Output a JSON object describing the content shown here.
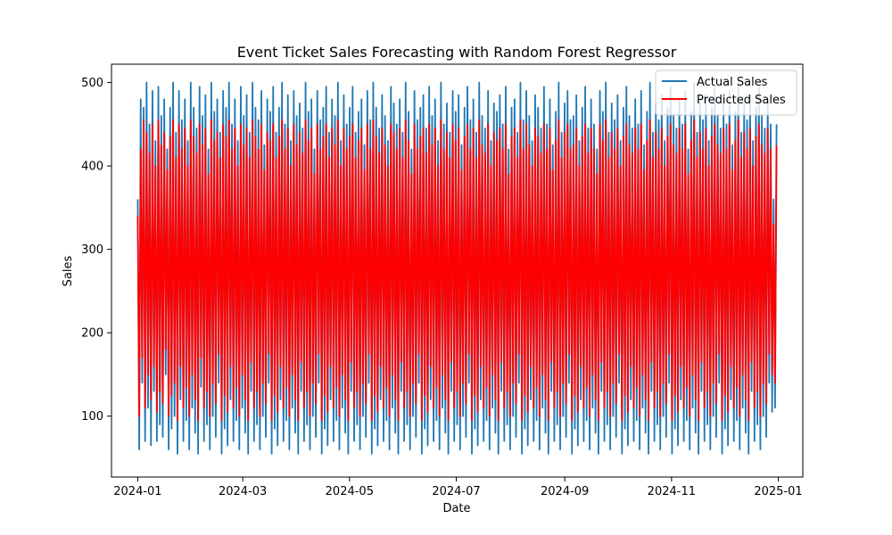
{
  "chart_data": {
    "type": "line",
    "title": "Event Ticket Sales Forecasting with Random Forest Regressor",
    "xlabel": "Date",
    "ylabel": "Sales",
    "x_range": [
      "2023-12-17",
      "2025-01-15"
    ],
    "ylim": [
      27,
      522
    ],
    "x_ticks": [
      {
        "date": "2024-01-01",
        "label": "2024-01"
      },
      {
        "date": "2024-03-01",
        "label": "2024-03"
      },
      {
        "date": "2024-05-01",
        "label": "2024-05"
      },
      {
        "date": "2024-07-01",
        "label": "2024-07"
      },
      {
        "date": "2024-09-01",
        "label": "2024-09"
      },
      {
        "date": "2024-11-01",
        "label": "2024-11"
      },
      {
        "date": "2025-01-01",
        "label": "2025-01"
      }
    ],
    "y_ticks": [
      100,
      200,
      300,
      400,
      500
    ],
    "grid": false,
    "legend_position": "top-right",
    "x_start": "2024-01-01",
    "x_end": "2024-12-31",
    "series": [
      {
        "name": "Actual Sales",
        "color": "#1f77b4",
        "values": [
          360,
          60,
          480,
          140,
          470,
          70,
          500,
          110,
          450,
          65,
          490,
          130,
          430,
          70,
          495,
          90,
          460,
          75,
          480,
          150,
          420,
          60,
          470,
          85,
          500,
          100,
          440,
          55,
          490,
          120,
          455,
          70,
          480,
          95,
          430,
          60,
          500,
          110,
          470,
          80,
          445,
          55,
          495,
          135,
          460,
          70,
          485,
          90,
          420,
          60,
          500,
          100,
          465,
          75,
          480,
          140,
          440,
          55,
          490,
          85,
          470,
          65,
          500,
          120,
          450,
          70,
          480,
          95,
          430,
          60,
          495,
          110,
          460,
          80,
          485,
          55,
          440,
          130,
          500,
          70,
          470,
          90,
          455,
          60,
          490,
          100,
          425,
          75,
          480,
          140,
          465,
          55,
          495,
          85,
          440,
          65,
          470,
          120,
          500,
          70,
          450,
          95,
          485,
          60,
          430,
          110,
          490,
          80,
          460,
          55,
          475,
          130,
          445,
          70,
          500,
          90,
          465,
          60,
          480,
          100,
          420,
          75,
          490,
          140,
          455,
          55,
          470,
          85,
          495,
          65,
          440,
          120,
          480,
          70,
          460,
          95,
          500,
          60,
          430,
          110,
          485,
          80,
          450,
          55,
          470,
          130,
          495,
          70,
          440,
          90,
          465,
          60,
          480,
          100,
          425,
          75,
          490,
          140,
          455,
          55,
          500,
          85,
          470,
          65,
          445,
          120,
          485,
          70,
          460,
          95,
          430,
          60,
          495,
          110,
          475,
          80,
          450,
          55,
          480,
          130,
          440,
          70,
          500,
          90,
          465,
          60,
          420,
          100,
          490,
          75,
          455,
          140,
          470,
          55,
          485,
          85,
          445,
          65,
          495,
          120,
          460,
          70,
          480,
          95,
          430,
          60,
          500,
          110,
          450,
          80,
          475,
          55,
          440,
          130,
          490,
          70,
          465,
          90,
          485,
          60,
          425,
          100,
          470,
          75,
          495,
          140,
          455,
          55,
          480,
          85,
          440,
          65,
          500,
          120,
          460,
          70,
          445,
          95,
          490,
          60,
          430,
          110,
          475,
          80,
          465,
          55,
          485,
          130,
          450,
          70,
          495,
          90,
          420,
          60,
          470,
          100,
          480,
          75,
          440,
          140,
          500,
          55,
          455,
          85,
          490,
          65,
          460,
          120,
          430,
          70,
          485,
          95,
          470,
          60,
          445,
          110,
          495,
          80,
          450,
          55,
          480,
          130,
          425,
          70,
          465,
          90,
          500,
          60,
          440,
          100,
          475,
          75,
          490,
          140,
          455,
          55,
          460,
          85,
          485,
          65,
          430,
          120,
          470,
          70,
          495,
          95,
          445,
          60,
          480,
          110,
          450,
          80,
          420,
          55,
          490,
          130,
          465,
          70,
          500,
          90,
          440,
          60,
          475,
          100,
          455,
          75,
          485,
          140,
          430,
          55,
          470,
          85,
          495,
          65,
          460,
          120,
          445,
          70,
          480,
          95,
          450,
          60,
          490,
          110,
          425,
          80,
          465,
          55,
          500,
          130,
          440,
          70,
          475,
          90,
          455,
          60,
          485,
          100,
          430,
          75,
          470,
          140,
          495,
          55,
          460,
          85,
          445,
          65,
          480,
          120,
          450,
          70,
          490,
          95,
          420,
          60,
          465,
          110,
          500,
          80,
          440,
          55,
          475,
          130,
          455,
          70,
          485,
          90,
          430,
          60,
          470,
          100,
          495,
          75,
          460,
          140,
          445,
          55,
          480,
          85,
          450,
          65,
          490,
          120,
          425,
          70,
          465,
          95,
          500,
          60,
          440,
          110,
          475,
          80,
          455,
          55,
          485,
          130,
          430,
          70,
          470,
          90,
          495,
          60,
          460,
          100,
          445,
          75,
          480,
          140,
          450,
          105,
          360,
          110,
          450
        ]
      },
      {
        "name": "Predicted Sales",
        "color": "#ff0000",
        "values": [
          340,
          100,
          420,
          170,
          455,
          110,
          440,
          150,
          415,
          120,
          450,
          160,
          400,
          105,
          455,
          130,
          425,
          115,
          440,
          180,
          395,
          100,
          435,
          125,
          455,
          140,
          410,
          95,
          450,
          160,
          420,
          110,
          445,
          135,
          400,
          100,
          455,
          150,
          435,
          120,
          415,
          95,
          450,
          170,
          425,
          110,
          445,
          130,
          390,
          100,
          455,
          140,
          430,
          115,
          440,
          175,
          410,
          95,
          450,
          125,
          435,
          105,
          455,
          160,
          420,
          110,
          445,
          135,
          400,
          100,
          450,
          150,
          425,
          120,
          445,
          95,
          410,
          165,
          455,
          110,
          435,
          130,
          420,
          100,
          450,
          140,
          395,
          115,
          440,
          175,
          430,
          95,
          450,
          125,
          410,
          105,
          435,
          160,
          455,
          110,
          420,
          135,
          445,
          100,
          400,
          150,
          450,
          120,
          425,
          95,
          440,
          165,
          415,
          110,
          455,
          130,
          430,
          100,
          445,
          140,
          390,
          115,
          450,
          175,
          420,
          95,
          435,
          125,
          450,
          105,
          410,
          160,
          445,
          110,
          425,
          135,
          455,
          100,
          400,
          150,
          445,
          120,
          420,
          95,
          435,
          165,
          450,
          110,
          410,
          130,
          430,
          100,
          445,
          140,
          395,
          115,
          450,
          175,
          420,
          95,
          455,
          125,
          435,
          105,
          415,
          160,
          445,
          110,
          425,
          135,
          400,
          100,
          450,
          150,
          440,
          120,
          420,
          95,
          445,
          165,
          410,
          110,
          455,
          130,
          430,
          100,
          390,
          140,
          450,
          115,
          420,
          175,
          435,
          95,
          445,
          125,
          415,
          105,
          450,
          160,
          425,
          110,
          445,
          135,
          400,
          100,
          455,
          150,
          420,
          120,
          440,
          95,
          410,
          165,
          450,
          110,
          430,
          130,
          445,
          100,
          395,
          140,
          435,
          115,
          450,
          175,
          420,
          95,
          445,
          125,
          410,
          105,
          455,
          160,
          425,
          110,
          415,
          135,
          450,
          100,
          400,
          150,
          440,
          120,
          430,
          95,
          445,
          165,
          420,
          110,
          450,
          130,
          390,
          100,
          435,
          140,
          445,
          115,
          410,
          175,
          455,
          95,
          420,
          125,
          450,
          105,
          425,
          160,
          400,
          110,
          445,
          135,
          435,
          100,
          415,
          150,
          450,
          120,
          420,
          95,
          445,
          165,
          395,
          110,
          430,
          130,
          455,
          100,
          410,
          140,
          440,
          115,
          450,
          175,
          420,
          95,
          425,
          125,
          445,
          105,
          400,
          160,
          435,
          110,
          450,
          135,
          415,
          100,
          445,
          150,
          420,
          120,
          390,
          95,
          450,
          165,
          430,
          110,
          455,
          130,
          410,
          100,
          440,
          140,
          420,
          115,
          445,
          175,
          400,
          95,
          435,
          125,
          450,
          105,
          425,
          160,
          415,
          110,
          445,
          135,
          420,
          100,
          450,
          150,
          395,
          120,
          430,
          95,
          455,
          165,
          410,
          110,
          440,
          130,
          420,
          100,
          445,
          140,
          400,
          115,
          435,
          175,
          450,
          95,
          425,
          125,
          415,
          105,
          445,
          160,
          420,
          110,
          450,
          135,
          390,
          100,
          430,
          150,
          455,
          120,
          410,
          95,
          440,
          165,
          420,
          110,
          445,
          130,
          400,
          100,
          435,
          140,
          450,
          115,
          425,
          175,
          415,
          95,
          445,
          125,
          420,
          105,
          450,
          160,
          395,
          110,
          430,
          135,
          455,
          100,
          410,
          150,
          440,
          120,
          420,
          95,
          445,
          165,
          400,
          110,
          435,
          130,
          450,
          100,
          425,
          140,
          415,
          115,
          445,
          175,
          420,
          150,
          330,
          140,
          425
        ]
      }
    ]
  }
}
